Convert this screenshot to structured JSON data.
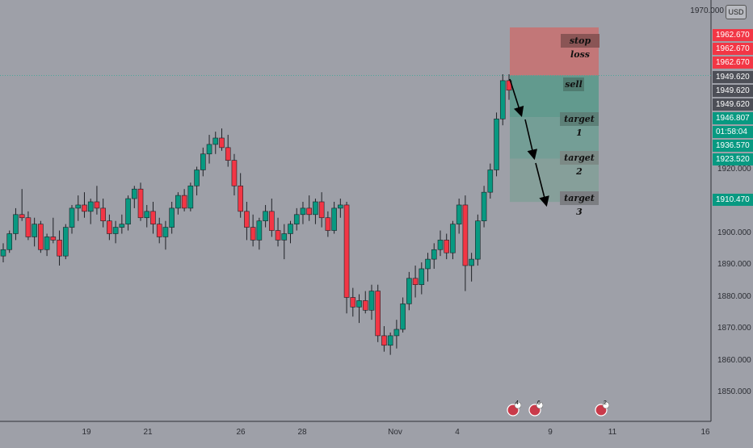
{
  "header": {
    "currency": "USD",
    "top_cut_label": "1970.000"
  },
  "zones": {
    "stop_loss_label": "stop loss",
    "sell_label": "sell",
    "target1_label": "target 1",
    "target2_label": "target 2",
    "target3_label": "target 3"
  },
  "price_axis": {
    "ticks": [
      "1920.000",
      "1910.000",
      "1900.000",
      "1890.000",
      "1880.000",
      "1870.000",
      "1860.000",
      "1850.000"
    ],
    "labels": [
      {
        "text": "1962.670",
        "value": 1962.67,
        "color": "#f23645"
      },
      {
        "text": "1962.670",
        "value": 1962.67,
        "color": "#f23645"
      },
      {
        "text": "1962.670",
        "value": 1962.67,
        "color": "#f23645"
      },
      {
        "text": "1949.620",
        "value": 1949.62,
        "color": "#4d4f57"
      },
      {
        "text": "1949.620",
        "value": 1949.62,
        "color": "#4d4f57"
      },
      {
        "text": "1949.620",
        "value": 1949.62,
        "color": "#4d4f57"
      },
      {
        "text": "1946.807",
        "value": 1946.807,
        "color": "#089981"
      },
      {
        "text": "01:58:04",
        "value": 1943.5,
        "color": "#089981"
      },
      {
        "text": "1936.570",
        "value": 1936.57,
        "color": "#089981"
      },
      {
        "text": "1923.520",
        "value": 1923.52,
        "color": "#089981"
      },
      {
        "text": "1910.470",
        "value": 1910.47,
        "color": "#089981"
      }
    ]
  },
  "time_axis": {
    "ticks": [
      "19",
      "21",
      "26",
      "28",
      "Nov",
      "4",
      "9",
      "11",
      "16"
    ]
  },
  "events": [
    "4",
    "6",
    "2"
  ],
  "chart_data": {
    "type": "candlestick",
    "ylim": [
      1843,
      1972
    ],
    "candles": [
      [
        1893,
        1897,
        1891,
        1895
      ],
      [
        1895,
        1901,
        1894,
        1900
      ],
      [
        1900,
        1908,
        1898,
        1906
      ],
      [
        1906,
        1914,
        1904,
        1905
      ],
      [
        1905,
        1907,
        1898,
        1899
      ],
      [
        1899,
        1905,
        1896,
        1903
      ],
      [
        1903,
        1904,
        1894,
        1895
      ],
      [
        1895,
        1900,
        1893,
        1899
      ],
      [
        1899,
        1905,
        1897,
        1898
      ],
      [
        1898,
        1901,
        1890,
        1893
      ],
      [
        1893,
        1903,
        1892,
        1902
      ],
      [
        1902,
        1909,
        1900,
        1908
      ],
      [
        1908,
        1912,
        1904,
        1909
      ],
      [
        1909,
        1913,
        1905,
        1907
      ],
      [
        1907,
        1911,
        1903,
        1910
      ],
      [
        1910,
        1915,
        1906,
        1908
      ],
      [
        1908,
        1911,
        1902,
        1904
      ],
      [
        1904,
        1906,
        1898,
        1900
      ],
      [
        1900,
        1904,
        1897,
        1902
      ],
      [
        1902,
        1906,
        1900,
        1903
      ],
      [
        1903,
        1912,
        1901,
        1911
      ],
      [
        1911,
        1915,
        1908,
        1914
      ],
      [
        1914,
        1916,
        1904,
        1905
      ],
      [
        1905,
        1909,
        1902,
        1907
      ],
      [
        1907,
        1910,
        1900,
        1903
      ],
      [
        1903,
        1905,
        1897,
        1899
      ],
      [
        1899,
        1904,
        1895,
        1902
      ],
      [
        1902,
        1910,
        1900,
        1908
      ],
      [
        1908,
        1913,
        1906,
        1912
      ],
      [
        1912,
        1914,
        1907,
        1908
      ],
      [
        1908,
        1916,
        1907,
        1915
      ],
      [
        1915,
        1921,
        1912,
        1920
      ],
      [
        1920,
        1927,
        1918,
        1925
      ],
      [
        1925,
        1931,
        1922,
        1928
      ],
      [
        1928,
        1932,
        1925,
        1930
      ],
      [
        1930,
        1933,
        1926,
        1927
      ],
      [
        1927,
        1931,
        1921,
        1923
      ],
      [
        1923,
        1925,
        1912,
        1915
      ],
      [
        1915,
        1919,
        1905,
        1907
      ],
      [
        1907,
        1910,
        1898,
        1902
      ],
      [
        1902,
        1906,
        1896,
        1898
      ],
      [
        1898,
        1905,
        1895,
        1904
      ],
      [
        1904,
        1909,
        1902,
        1907
      ],
      [
        1907,
        1911,
        1899,
        1901
      ],
      [
        1901,
        1905,
        1896,
        1898
      ],
      [
        1898,
        1903,
        1892,
        1900
      ],
      [
        1900,
        1904,
        1897,
        1903
      ],
      [
        1903,
        1908,
        1901,
        1906
      ],
      [
        1906,
        1910,
        1903,
        1908
      ],
      [
        1908,
        1912,
        1904,
        1906
      ],
      [
        1906,
        1911,
        1903,
        1910
      ],
      [
        1910,
        1913,
        1902,
        1905
      ],
      [
        1905,
        1907,
        1899,
        1901
      ],
      [
        1901,
        1910,
        1900,
        1908
      ],
      [
        1908,
        1911,
        1905,
        1909
      ],
      [
        1909,
        1910,
        1875,
        1880
      ],
      [
        1880,
        1883,
        1874,
        1877
      ],
      [
        1877,
        1881,
        1872,
        1879
      ],
      [
        1879,
        1882,
        1875,
        1876
      ],
      [
        1876,
        1884,
        1873,
        1882
      ],
      [
        1882,
        1884,
        1866,
        1868
      ],
      [
        1868,
        1871,
        1863,
        1865
      ],
      [
        1865,
        1869,
        1862,
        1868
      ],
      [
        1868,
        1873,
        1864,
        1870
      ],
      [
        1870,
        1880,
        1869,
        1878
      ],
      [
        1878,
        1888,
        1876,
        1886
      ],
      [
        1886,
        1890,
        1880,
        1884
      ],
      [
        1884,
        1891,
        1881,
        1889
      ],
      [
        1889,
        1894,
        1885,
        1892
      ],
      [
        1892,
        1897,
        1889,
        1895
      ],
      [
        1895,
        1901,
        1893,
        1898
      ],
      [
        1898,
        1900,
        1892,
        1894
      ],
      [
        1894,
        1904,
        1892,
        1903
      ],
      [
        1903,
        1911,
        1900,
        1909
      ],
      [
        1909,
        1912,
        1882,
        1890
      ],
      [
        1890,
        1894,
        1885,
        1892
      ],
      [
        1892,
        1906,
        1890,
        1904
      ],
      [
        1904,
        1915,
        1902,
        1913
      ],
      [
        1913,
        1922,
        1911,
        1920
      ],
      [
        1920,
        1938,
        1918,
        1936
      ],
      [
        1936,
        1950,
        1934,
        1948
      ],
      [
        1948,
        1950,
        1942,
        1945
      ]
    ]
  }
}
